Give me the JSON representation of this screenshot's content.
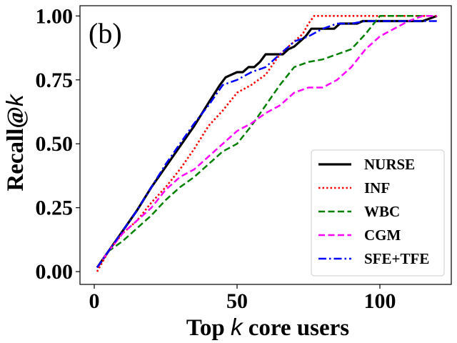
{
  "chart_data": {
    "type": "line",
    "panel_label": "(b)",
    "xlabel_prefix": "Top ",
    "xlabel_var": "k",
    "xlabel_suffix": " core users",
    "ylabel_prefix": "Recall@",
    "ylabel_var": "k",
    "xlim": [
      -5,
      125
    ],
    "ylim": [
      -0.05,
      1.04
    ],
    "xticks": [
      0,
      50,
      100
    ],
    "yticks": [
      0.0,
      0.25,
      0.5,
      0.75,
      1.0
    ],
    "xtick_labels": [
      "0",
      "50",
      "100"
    ],
    "ytick_labels": [
      "0.00",
      "0.25",
      "0.50",
      "0.75",
      "1.00"
    ],
    "legend_position": "lower-right",
    "series": [
      {
        "name": "NURSE",
        "color": "#000000",
        "style": "solid",
        "x": [
          1,
          5,
          10,
          15,
          20,
          25,
          30,
          35,
          40,
          44,
          46,
          48,
          50,
          52,
          54,
          56,
          58,
          60,
          62,
          64,
          66,
          68,
          70,
          72,
          74,
          76,
          78,
          80,
          82,
          84,
          86,
          88,
          90,
          92,
          94,
          96,
          98,
          100,
          105,
          110,
          115,
          120
        ],
        "y": [
          0.016,
          0.08,
          0.16,
          0.24,
          0.33,
          0.41,
          0.49,
          0.57,
          0.66,
          0.73,
          0.76,
          0.77,
          0.78,
          0.78,
          0.8,
          0.8,
          0.82,
          0.85,
          0.85,
          0.85,
          0.85,
          0.87,
          0.88,
          0.9,
          0.92,
          0.95,
          0.95,
          0.95,
          0.95,
          0.95,
          0.97,
          0.97,
          0.97,
          0.97,
          0.98,
          0.98,
          0.98,
          0.98,
          0.98,
          0.98,
          0.98,
          1.0
        ]
      },
      {
        "name": "INF",
        "color": "#ff0000",
        "style": "dotted",
        "x": [
          1,
          5,
          10,
          15,
          20,
          25,
          30,
          35,
          40,
          45,
          50,
          55,
          60,
          65,
          70,
          73,
          75,
          77,
          80,
          85,
          90,
          95,
          100,
          105,
          110,
          115,
          120
        ],
        "y": [
          0.0,
          0.08,
          0.15,
          0.2,
          0.27,
          0.33,
          0.4,
          0.48,
          0.57,
          0.63,
          0.7,
          0.73,
          0.77,
          0.85,
          0.9,
          0.93,
          0.97,
          1.0,
          1.0,
          1.0,
          1.0,
          1.0,
          1.0,
          1.0,
          1.0,
          1.0,
          1.0
        ]
      },
      {
        "name": "WBC",
        "color": "#008000",
        "style": "dashed",
        "x": [
          1,
          5,
          10,
          15,
          20,
          25,
          30,
          35,
          40,
          45,
          50,
          55,
          60,
          65,
          70,
          75,
          80,
          85,
          90,
          95,
          100,
          105,
          110,
          115,
          120
        ],
        "y": [
          0.016,
          0.08,
          0.12,
          0.17,
          0.22,
          0.28,
          0.33,
          0.37,
          0.42,
          0.47,
          0.5,
          0.57,
          0.65,
          0.73,
          0.8,
          0.82,
          0.83,
          0.85,
          0.87,
          0.93,
          1.0,
          1.0,
          1.0,
          1.0,
          1.0
        ]
      },
      {
        "name": "CGM",
        "color": "#ff00ff",
        "style": "dashed",
        "x": [
          1,
          5,
          10,
          15,
          20,
          25,
          30,
          35,
          40,
          45,
          50,
          55,
          60,
          65,
          70,
          75,
          80,
          85,
          90,
          95,
          100,
          105,
          110,
          115,
          120
        ],
        "y": [
          0.016,
          0.08,
          0.15,
          0.2,
          0.25,
          0.32,
          0.37,
          0.4,
          0.45,
          0.5,
          0.55,
          0.58,
          0.62,
          0.65,
          0.7,
          0.72,
          0.72,
          0.75,
          0.8,
          0.87,
          0.92,
          0.95,
          0.98,
          1.0,
          1.0
        ]
      },
      {
        "name": "SFE+TFE",
        "color": "#0000ff",
        "style": "dashdot",
        "x": [
          1,
          5,
          10,
          15,
          20,
          25,
          30,
          35,
          40,
          45,
          50,
          55,
          60,
          65,
          70,
          75,
          80,
          85,
          90,
          95,
          100,
          105,
          110,
          115,
          120
        ],
        "y": [
          0.016,
          0.08,
          0.16,
          0.24,
          0.33,
          0.42,
          0.5,
          0.58,
          0.65,
          0.73,
          0.75,
          0.78,
          0.8,
          0.85,
          0.9,
          0.92,
          0.95,
          0.97,
          0.97,
          0.98,
          0.98,
          0.98,
          0.98,
          0.98,
          0.98
        ]
      }
    ]
  }
}
